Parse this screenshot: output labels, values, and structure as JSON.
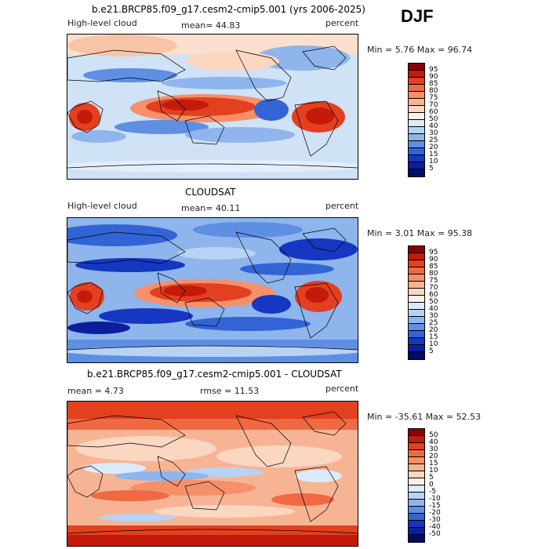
{
  "season": "DJF",
  "panels": [
    {
      "id": "model",
      "header": "b.e21.BRCP85.f09_g17.cesm2-cmip5.001 (yrs 2006-2025)",
      "left": "High-level cloud",
      "mean_text": "mean=  44.83",
      "units": "percent",
      "minmax": "Min =   5.76 Max =  96.74",
      "levels": [
        "95",
        "90",
        "85",
        "80",
        "75",
        "70",
        "60",
        "50",
        "40",
        "30",
        "25",
        "20",
        "15",
        "10",
        "5"
      ],
      "colors": [
        "#8b0000",
        "#c41a0a",
        "#e2401f",
        "#ef6a42",
        "#f5906b",
        "#f7b494",
        "#fbd6c0",
        "#fdf0e4",
        "#dcebfa",
        "#b8d2f3",
        "#8eb5ec",
        "#5f8fe2",
        "#3264d6",
        "#1537c2",
        "#0b1f9c",
        "#000c6b"
      ]
    },
    {
      "id": "obs",
      "header": "CLOUDSAT",
      "left": "High-level cloud",
      "mean_text": "mean=  40.11",
      "units": "percent",
      "minmax": "Min =   3.01 Max =  95.38",
      "levels": [
        "95",
        "90",
        "85",
        "80",
        "75",
        "70",
        "60",
        "50",
        "40",
        "30",
        "25",
        "20",
        "15",
        "10",
        "5"
      ],
      "colors": [
        "#8b0000",
        "#c41a0a",
        "#e2401f",
        "#ef6a42",
        "#f5906b",
        "#f7b494",
        "#fbd6c0",
        "#fdf0e4",
        "#dcebfa",
        "#b8d2f3",
        "#8eb5ec",
        "#5f8fe2",
        "#3264d6",
        "#1537c2",
        "#0b1f9c",
        "#000c6b"
      ]
    },
    {
      "id": "diff",
      "header": "b.e21.BRCP85.f09_g17.cesm2-cmip5.001 - CLOUDSAT",
      "left": "mean =    4.73",
      "mean_text": "rmse =   11.53",
      "units": "percent",
      "minmax": "Min = -35.61 Max =  52.53",
      "levels": [
        "50",
        "40",
        "30",
        "20",
        "15",
        "10",
        "5",
        "0",
        "-5",
        "-10",
        "-15",
        "-20",
        "-30",
        "-40",
        "-50"
      ],
      "colors": [
        "#8b0000",
        "#c41a0a",
        "#e2401f",
        "#ef6a42",
        "#f5906b",
        "#f7b494",
        "#fbd6c0",
        "#fdf0e4",
        "#dcebfa",
        "#b8d2f3",
        "#8eb5ec",
        "#5f8fe2",
        "#3264d6",
        "#1537c2",
        "#0b1f9c",
        "#000c6b"
      ]
    }
  ],
  "chart_data": [
    {
      "type": "heatmap",
      "title": "b.e21.BRCP85.f09_g17.cesm2-cmip5.001 (yrs 2006-2025)",
      "variable": "High-level cloud",
      "units": "percent",
      "mean": 44.83,
      "min": 5.76,
      "max": 96.74,
      "contour_levels": [
        5,
        10,
        15,
        20,
        25,
        30,
        40,
        50,
        60,
        70,
        75,
        80,
        85,
        90,
        95
      ]
    },
    {
      "type": "heatmap",
      "title": "CLOUDSAT",
      "variable": "High-level cloud",
      "units": "percent",
      "mean": 40.11,
      "min": 3.01,
      "max": 95.38,
      "contour_levels": [
        5,
        10,
        15,
        20,
        25,
        30,
        40,
        50,
        60,
        70,
        75,
        80,
        85,
        90,
        95
      ]
    },
    {
      "type": "heatmap",
      "title": "b.e21.BRCP85.f09_g17.cesm2-cmip5.001 - CLOUDSAT",
      "units": "percent",
      "mean": 4.73,
      "rmse": 11.53,
      "min": -35.61,
      "max": 52.53,
      "contour_levels": [
        -50,
        -40,
        -30,
        -20,
        -15,
        -10,
        -5,
        0,
        5,
        10,
        15,
        20,
        30,
        40,
        50
      ]
    }
  ]
}
